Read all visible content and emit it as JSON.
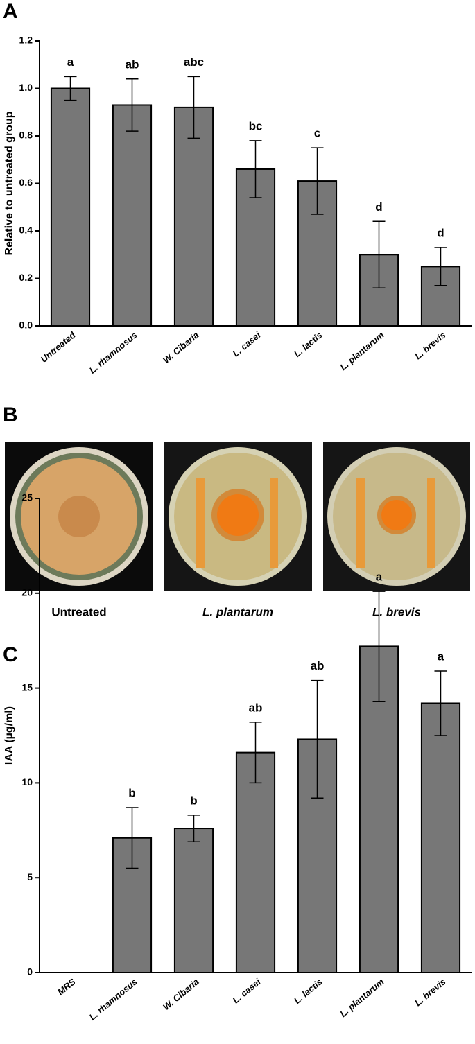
{
  "panel_labels": [
    "A",
    "B",
    "C"
  ],
  "photo_captions": [
    "Untreated",
    "L. plantarum",
    "L. brevis"
  ],
  "chart_data": [
    {
      "type": "bar",
      "ylabel": "Relative to untreated group",
      "categories": [
        "Untreated",
        "L. rhamnosus",
        "W. Cibaria",
        "L. casei",
        "L. lactis",
        "L. plantarum",
        "L. brevis"
      ],
      "values": [
        1.0,
        0.93,
        0.92,
        0.66,
        0.61,
        0.3,
        0.25
      ],
      "errors": [
        0.05,
        0.11,
        0.13,
        0.12,
        0.14,
        0.14,
        0.08
      ],
      "annotations": [
        "a",
        "ab",
        "abc",
        "bc",
        "c",
        "d",
        "d"
      ],
      "color": "#777777",
      "ylim": [
        0,
        1.2
      ],
      "yticks": [
        {
          "value": 0,
          "label": "0.0"
        },
        0.2,
        0.4,
        0.6,
        0.8,
        {
          "value": 1,
          "label": "1.0"
        },
        1.2
      ]
    },
    {
      "type": "bar",
      "ylabel": "IAA (µg/ml)",
      "categories": [
        "MRS",
        "L. rhamnosus",
        "W. Cibaria",
        "L. casei",
        "L. lactis",
        "L. plantarum",
        "L. brevis"
      ],
      "values": [
        0,
        7.1,
        7.6,
        11.6,
        12.3,
        17.2,
        14.2
      ],
      "errors": [
        0,
        1.6,
        0.7,
        1.6,
        3.1,
        2.9,
        1.7
      ],
      "annotations": [
        null,
        "b",
        "b",
        "ab",
        "ab",
        "a",
        "a"
      ],
      "color": "#777777",
      "ylim": [
        0,
        25
      ],
      "yticks": [
        0,
        5,
        10,
        15,
        20,
        25
      ]
    }
  ]
}
